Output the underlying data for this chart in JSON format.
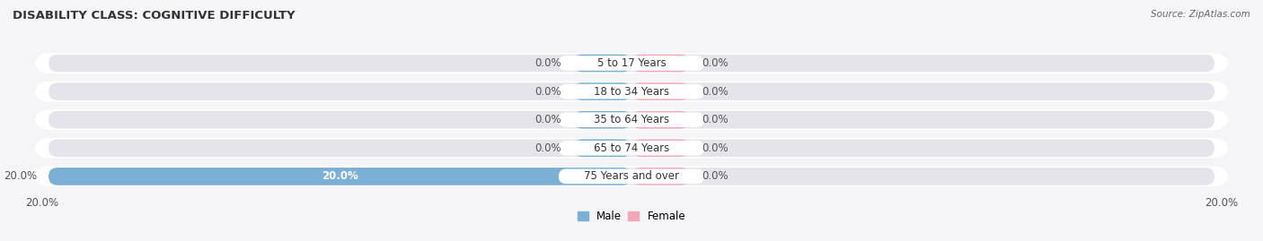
{
  "title": "DISABILITY CLASS: COGNITIVE DIFFICULTY",
  "source": "Source: ZipAtlas.com",
  "categories": [
    "5 to 17 Years",
    "18 to 34 Years",
    "35 to 64 Years",
    "65 to 74 Years",
    "75 Years and over"
  ],
  "male_values": [
    0.0,
    0.0,
    0.0,
    0.0,
    20.0
  ],
  "female_values": [
    0.0,
    0.0,
    0.0,
    0.0,
    0.0
  ],
  "male_color": "#7bafd4",
  "female_color": "#f4a7b9",
  "bar_bg_color": "#e4e4ea",
  "label_bg_color": "#ffffff",
  "axis_limit": 20.0,
  "min_stub": 2.0,
  "title_fontsize": 9.5,
  "label_fontsize": 8.5,
  "value_fontsize": 8.5,
  "tick_fontsize": 8.5,
  "bar_height": 0.62,
  "background_color": "#f5f5f7",
  "row_bg_color": "#f5f5f7"
}
